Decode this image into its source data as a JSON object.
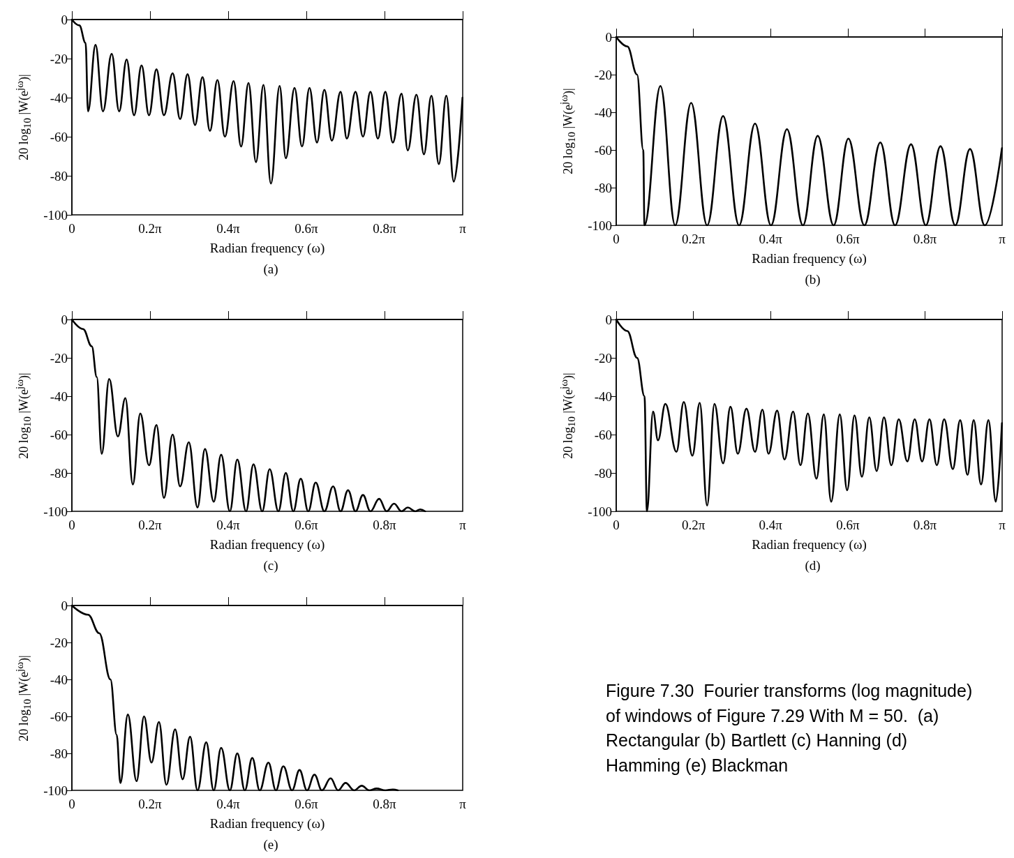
{
  "chart_data": [
    {
      "type": "line",
      "title": "(a)",
      "xlabel": "Radian frequency (ω)",
      "ylabel": "20 log$_{10}$ |W(e$^{jω}$)|",
      "color": "#000000",
      "xlim": [
        0,
        3.1416
      ],
      "ylim": [
        -100,
        0
      ],
      "xticks": [
        {
          "value": 0,
          "label": "0"
        },
        {
          "value": 0.6283,
          "label": "0.2π"
        },
        {
          "value": 1.2566,
          "label": "0.4π"
        },
        {
          "value": 1.885,
          "label": "0.6π"
        },
        {
          "value": 2.5133,
          "label": "0.8π"
        },
        {
          "value": 3.1416,
          "label": "π"
        }
      ],
      "yticks": [
        -100,
        -80,
        -60,
        -40,
        -20,
        0
      ],
      "x": [
        0,
        0.06,
        0.11,
        0.13,
        0.19,
        0.25,
        0.32,
        0.38,
        0.44,
        0.5,
        0.56,
        0.62,
        0.68,
        0.74,
        0.81,
        0.87,
        0.93,
        0.99,
        1.05,
        1.11,
        1.17,
        1.23,
        1.3,
        1.36,
        1.42,
        1.48,
        1.54,
        1.6,
        1.67,
        1.72,
        1.79,
        1.85,
        1.91,
        1.97,
        2.03,
        2.09,
        2.16,
        2.21,
        2.28,
        2.34,
        2.4,
        2.46,
        2.52,
        2.58,
        2.65,
        2.7,
        2.77,
        2.83,
        2.89,
        2.95,
        3.01,
        3.07,
        3.14
      ],
      "values": [
        0,
        -3,
        -12,
        -47,
        -13,
        -47,
        -17.5,
        -47,
        -20.5,
        -49,
        -23.5,
        -49,
        -25.5,
        -49,
        -27.5,
        -51,
        -28,
        -54,
        -29.5,
        -57,
        -31,
        -60,
        -31.5,
        -65,
        -32.5,
        -73,
        -33.5,
        -84,
        -34,
        -71,
        -35,
        -65,
        -35,
        -63,
        -36,
        -62,
        -37,
        -61,
        -37,
        -60,
        -37,
        -61,
        -37,
        -63,
        -38,
        -67,
        -38.5,
        -69,
        -39,
        -74,
        -39,
        -83,
        -40
      ]
    },
    {
      "type": "line",
      "title": "(b)",
      "xlabel": "Radian frequency (ω)",
      "ylabel": "20 log$_{10}$ |W(e$^{jω}$)|",
      "color": "#000000",
      "xlim": [
        0,
        3.1416
      ],
      "ylim": [
        -100,
        0
      ],
      "xticks": [
        {
          "value": 0,
          "label": "0"
        },
        {
          "value": 0.6283,
          "label": "0.2π"
        },
        {
          "value": 1.2566,
          "label": "0.4π"
        },
        {
          "value": 1.885,
          "label": "0.6π"
        },
        {
          "value": 2.5133,
          "label": "0.8π"
        },
        {
          "value": 3.1416,
          "label": "π"
        }
      ],
      "yticks": [
        -100,
        -80,
        -60,
        -40,
        -20,
        0
      ],
      "x": [
        0,
        0.09,
        0.17,
        0.22,
        0.23,
        0.36,
        0.48,
        0.61,
        0.74,
        0.87,
        1.0,
        1.13,
        1.26,
        1.39,
        1.52,
        1.64,
        1.77,
        1.89,
        2.02,
        2.15,
        2.27,
        2.4,
        2.52,
        2.64,
        2.76,
        2.88,
        3.0,
        3.14
      ],
      "values": [
        0,
        -5,
        -20,
        -60,
        -100,
        -26,
        -100,
        -35,
        -100,
        -42,
        -100,
        -46,
        -100,
        -49,
        -100,
        -52.5,
        -100,
        -54,
        -100,
        -56,
        -100,
        -57,
        -100,
        -58,
        -100,
        -59.5,
        -100,
        -59
      ]
    },
    {
      "type": "line",
      "title": "(c)",
      "xlabel": "Radian frequency (ω)",
      "ylabel": "20 log$_{10}$ |W(e$^{jω}$)|",
      "color": "#000000",
      "xlim": [
        0,
        3.1416
      ],
      "ylim": [
        -100,
        0
      ],
      "xticks": [
        {
          "value": 0,
          "label": "0"
        },
        {
          "value": 0.6283,
          "label": "0.2π"
        },
        {
          "value": 1.2566,
          "label": "0.4π"
        },
        {
          "value": 1.885,
          "label": "0.6π"
        },
        {
          "value": 2.5133,
          "label": "0.8π"
        },
        {
          "value": 3.1416,
          "label": "π"
        }
      ],
      "yticks": [
        -100,
        -80,
        -60,
        -40,
        -20,
        0
      ],
      "x": [
        0,
        0.09,
        0.16,
        0.2,
        0.24,
        0.3,
        0.37,
        0.43,
        0.49,
        0.55,
        0.62,
        0.68,
        0.74,
        0.81,
        0.87,
        0.94,
        1.01,
        1.07,
        1.14,
        1.2,
        1.27,
        1.33,
        1.4,
        1.46,
        1.53,
        1.59,
        1.66,
        1.72,
        1.78,
        1.84,
        1.9,
        1.96,
        2.03,
        2.1,
        2.16,
        2.22,
        2.28,
        2.34,
        2.4,
        2.47,
        2.53,
        2.59,
        2.65,
        2.7,
        2.76,
        2.8,
        2.84
      ],
      "values": [
        0,
        -5,
        -14,
        -30,
        -70,
        -31,
        -61,
        -41,
        -86,
        -49,
        -76,
        -55,
        -93,
        -60,
        -87,
        -64,
        -98,
        -67.5,
        -95,
        -70.5,
        -100,
        -73,
        -100,
        -75.5,
        -100,
        -78,
        -100,
        -80,
        -100,
        -83,
        -100,
        -85,
        -100,
        -87,
        -100,
        -89,
        -100,
        -91.5,
        -100,
        -93.5,
        -100,
        -96,
        -100,
        -98,
        -100,
        -99,
        -100
      ]
    },
    {
      "type": "line",
      "title": "(d)",
      "xlabel": "Radian frequency (ω)",
      "ylabel": "20 log$_{10}$ |W(e$^{jω}$)|",
      "color": "#000000",
      "xlim": [
        0,
        3.1416
      ],
      "ylim": [
        -100,
        0
      ],
      "xticks": [
        {
          "value": 0,
          "label": "0"
        },
        {
          "value": 0.6283,
          "label": "0.2π"
        },
        {
          "value": 1.2566,
          "label": "0.4π"
        },
        {
          "value": 1.885,
          "label": "0.6π"
        },
        {
          "value": 2.5133,
          "label": "0.8π"
        },
        {
          "value": 3.1416,
          "label": "π"
        }
      ],
      "yticks": [
        -100,
        -80,
        -60,
        -40,
        -20,
        0
      ],
      "x": [
        0,
        0.09,
        0.17,
        0.23,
        0.25,
        0.3,
        0.34,
        0.4,
        0.49,
        0.55,
        0.62,
        0.68,
        0.74,
        0.8,
        0.87,
        0.93,
        0.99,
        1.06,
        1.13,
        1.19,
        1.24,
        1.31,
        1.37,
        1.44,
        1.5,
        1.56,
        1.63,
        1.69,
        1.75,
        1.82,
        1.88,
        1.94,
        2.0,
        2.06,
        2.12,
        2.18,
        2.24,
        2.3,
        2.37,
        2.43,
        2.49,
        2.55,
        2.61,
        2.67,
        2.74,
        2.8,
        2.86,
        2.91,
        2.97,
        3.03,
        3.09,
        3.14
      ],
      "values": [
        0,
        -6,
        -20,
        -40,
        -100,
        -48,
        -63,
        -44,
        -69,
        -43,
        -71,
        -43.5,
        -97,
        -44,
        -75,
        -45.5,
        -70,
        -46.5,
        -69,
        -47,
        -70,
        -47.5,
        -73,
        -48,
        -76,
        -49,
        -83,
        -49.5,
        -95,
        -49.5,
        -89,
        -50,
        -82,
        -51,
        -79,
        -51,
        -76,
        -52,
        -74,
        -52,
        -74,
        -52,
        -76,
        -52,
        -78,
        -52.5,
        -81,
        -52.5,
        -86,
        -52.5,
        -95,
        -54
      ]
    },
    {
      "type": "line",
      "title": "(e)",
      "xlabel": "Radian frequency (ω)",
      "ylabel": "20 log$_{10}$ |W(e$^{jω}$)|",
      "color": "#000000",
      "xlim": [
        0,
        3.1416
      ],
      "ylim": [
        -100,
        0
      ],
      "xticks": [
        {
          "value": 0,
          "label": "0"
        },
        {
          "value": 0.6283,
          "label": "0.2π"
        },
        {
          "value": 1.2566,
          "label": "0.4π"
        },
        {
          "value": 1.885,
          "label": "0.6π"
        },
        {
          "value": 2.5133,
          "label": "0.8π"
        },
        {
          "value": 3.1416,
          "label": "π"
        }
      ],
      "yticks": [
        -100,
        -80,
        -60,
        -40,
        -20,
        0
      ],
      "x": [
        0,
        0.13,
        0.22,
        0.31,
        0.36,
        0.39,
        0.45,
        0.52,
        0.58,
        0.64,
        0.7,
        0.76,
        0.83,
        0.89,
        0.95,
        1.01,
        1.08,
        1.14,
        1.2,
        1.27,
        1.33,
        1.39,
        1.45,
        1.51,
        1.58,
        1.64,
        1.7,
        1.77,
        1.83,
        1.89,
        1.95,
        2.01,
        2.08,
        2.14,
        2.2,
        2.27,
        2.33,
        2.39,
        2.45,
        2.52,
        2.58,
        2.62
      ],
      "values": [
        0,
        -5,
        -15,
        -40,
        -70,
        -96,
        -59,
        -95,
        -60,
        -85,
        -63,
        -97,
        -67,
        -94,
        -71,
        -100,
        -74,
        -100,
        -77,
        -100,
        -80,
        -100,
        -82.5,
        -100,
        -85,
        -100,
        -87,
        -100,
        -89,
        -100,
        -91.5,
        -100,
        -93.5,
        -100,
        -96,
        -100,
        -97.5,
        -100,
        -99,
        -100,
        -99.5,
        -100
      ]
    },
    {
      "type": "other",
      "annotations": [
        "Figure 7.30  Fourier transforms (log magnitude) of windows of Figure 7.29 With M = 50.  (a) Rectangular (b) Bartlett (c) Hanning (d) Hamming (e) Blackman"
      ]
    }
  ]
}
